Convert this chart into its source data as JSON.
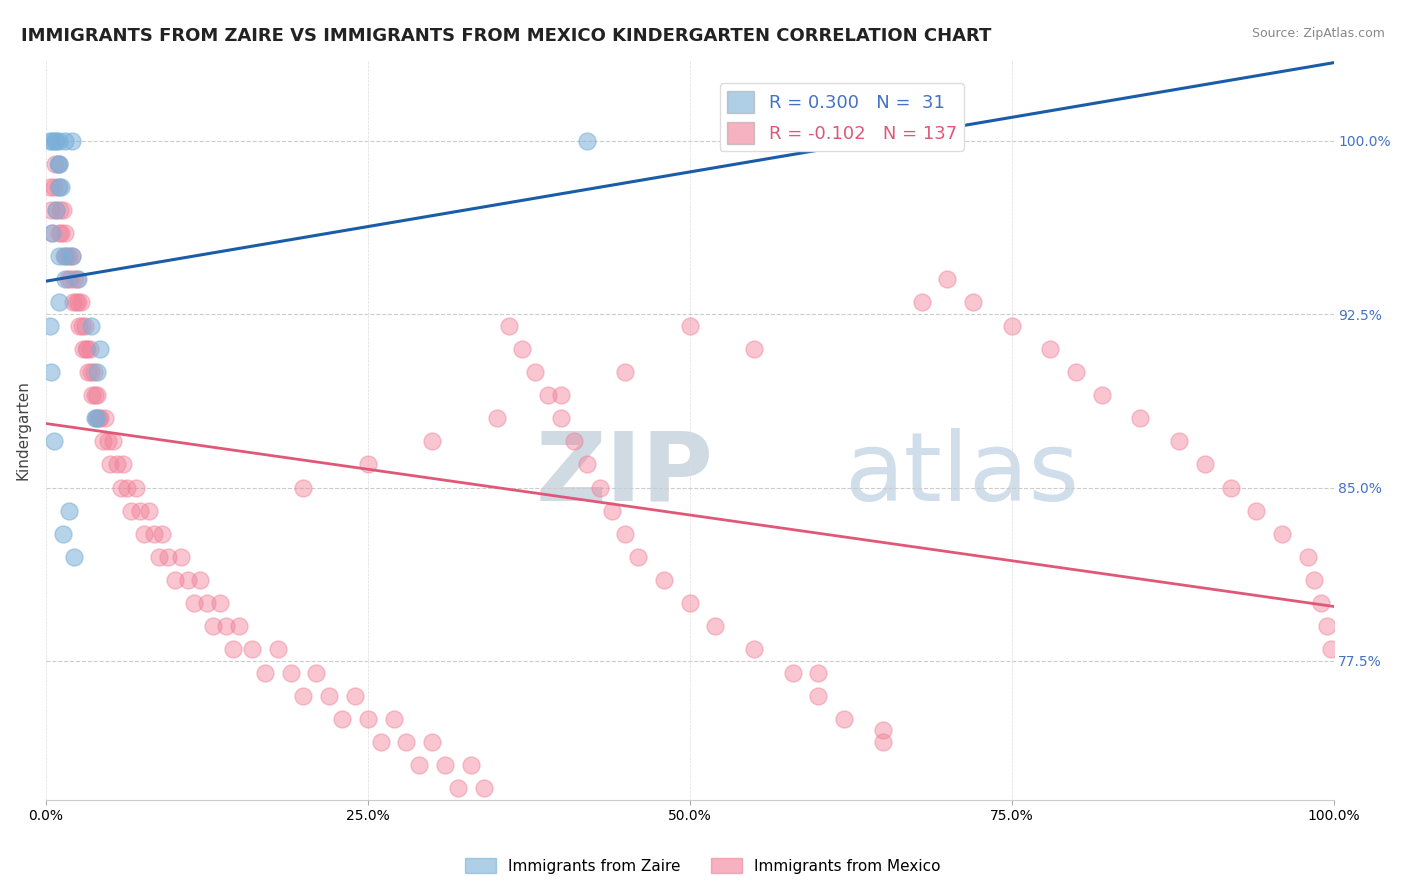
{
  "title": "IMMIGRANTS FROM ZAIRE VS IMMIGRANTS FROM MEXICO KINDERGARTEN CORRELATION CHART",
  "source": "Source: ZipAtlas.com",
  "ylabel": "Kindergarten",
  "ytick_values": [
    0.775,
    0.85,
    0.925,
    1.0
  ],
  "xlim": [
    0.0,
    1.0
  ],
  "ylim": [
    0.715,
    1.035
  ],
  "zaire_color": "#7ab0d8",
  "mexico_color": "#f08098",
  "zaire_line_color": "#1a5ca8",
  "mexico_line_color": "#e05878",
  "watermark_color": "#ccdde8",
  "background_color": "#ffffff",
  "title_fontsize": 13,
  "axis_label_fontsize": 11,
  "tick_fontsize": 10,
  "zaire_R": 0.3,
  "zaire_N": 31,
  "mexico_R": -0.102,
  "mexico_N": 137,
  "zaire_x": [
    0.003,
    0.005,
    0.005,
    0.007,
    0.008,
    0.008,
    0.009,
    0.01,
    0.01,
    0.01,
    0.01,
    0.01,
    0.012,
    0.013,
    0.015,
    0.015,
    0.015,
    0.018,
    0.02,
    0.02,
    0.022,
    0.025,
    0.035,
    0.038,
    0.04,
    0.04,
    0.042,
    0.003,
    0.004,
    0.006,
    0.42
  ],
  "zaire_y": [
    1.0,
    1.0,
    0.96,
    1.0,
    1.0,
    0.97,
    0.99,
    1.0,
    0.99,
    0.98,
    0.95,
    0.93,
    0.98,
    0.83,
    1.0,
    0.95,
    0.94,
    0.84,
    1.0,
    0.95,
    0.82,
    0.94,
    0.92,
    0.88,
    0.9,
    0.88,
    0.91,
    0.92,
    0.9,
    0.87,
    1.0
  ],
  "mexico_x": [
    0.003,
    0.004,
    0.005,
    0.006,
    0.007,
    0.008,
    0.009,
    0.01,
    0.01,
    0.011,
    0.012,
    0.013,
    0.014,
    0.015,
    0.016,
    0.017,
    0.018,
    0.019,
    0.02,
    0.021,
    0.022,
    0.023,
    0.024,
    0.025,
    0.026,
    0.027,
    0.028,
    0.029,
    0.03,
    0.031,
    0.032,
    0.033,
    0.034,
    0.035,
    0.036,
    0.037,
    0.038,
    0.039,
    0.04,
    0.041,
    0.042,
    0.044,
    0.046,
    0.048,
    0.05,
    0.052,
    0.055,
    0.058,
    0.06,
    0.063,
    0.066,
    0.07,
    0.073,
    0.076,
    0.08,
    0.084,
    0.088,
    0.09,
    0.095,
    0.1,
    0.105,
    0.11,
    0.115,
    0.12,
    0.125,
    0.13,
    0.135,
    0.14,
    0.145,
    0.15,
    0.16,
    0.17,
    0.18,
    0.19,
    0.2,
    0.21,
    0.22,
    0.23,
    0.24,
    0.25,
    0.26,
    0.27,
    0.28,
    0.29,
    0.3,
    0.31,
    0.32,
    0.33,
    0.34,
    0.35,
    0.36,
    0.37,
    0.38,
    0.39,
    0.4,
    0.41,
    0.42,
    0.43,
    0.44,
    0.45,
    0.46,
    0.48,
    0.5,
    0.52,
    0.55,
    0.58,
    0.6,
    0.62,
    0.65,
    0.68,
    0.7,
    0.72,
    0.75,
    0.78,
    0.8,
    0.82,
    0.85,
    0.88,
    0.9,
    0.92,
    0.94,
    0.96,
    0.98,
    0.985,
    0.99,
    0.995,
    0.998,
    0.6,
    0.65,
    0.5,
    0.55,
    0.45,
    0.4,
    0.35,
    0.3,
    0.25,
    0.2
  ],
  "mexico_y": [
    0.98,
    0.97,
    0.96,
    0.98,
    0.99,
    0.97,
    0.98,
    0.99,
    0.96,
    0.97,
    0.96,
    0.97,
    0.95,
    0.96,
    0.95,
    0.94,
    0.95,
    0.94,
    0.95,
    0.93,
    0.94,
    0.93,
    0.94,
    0.93,
    0.92,
    0.93,
    0.92,
    0.91,
    0.92,
    0.91,
    0.91,
    0.9,
    0.91,
    0.9,
    0.89,
    0.9,
    0.89,
    0.88,
    0.89,
    0.88,
    0.88,
    0.87,
    0.88,
    0.87,
    0.86,
    0.87,
    0.86,
    0.85,
    0.86,
    0.85,
    0.84,
    0.85,
    0.84,
    0.83,
    0.84,
    0.83,
    0.82,
    0.83,
    0.82,
    0.81,
    0.82,
    0.81,
    0.8,
    0.81,
    0.8,
    0.79,
    0.8,
    0.79,
    0.78,
    0.79,
    0.78,
    0.77,
    0.78,
    0.77,
    0.76,
    0.77,
    0.76,
    0.75,
    0.76,
    0.75,
    0.74,
    0.75,
    0.74,
    0.73,
    0.74,
    0.73,
    0.72,
    0.73,
    0.72,
    0.71,
    0.92,
    0.91,
    0.9,
    0.89,
    0.88,
    0.87,
    0.86,
    0.85,
    0.84,
    0.83,
    0.82,
    0.81,
    0.8,
    0.79,
    0.78,
    0.77,
    0.76,
    0.75,
    0.74,
    0.93,
    0.94,
    0.93,
    0.92,
    0.91,
    0.9,
    0.89,
    0.88,
    0.87,
    0.86,
    0.85,
    0.84,
    0.83,
    0.82,
    0.81,
    0.8,
    0.79,
    0.78,
    0.77,
    0.745,
    0.92,
    0.91,
    0.9,
    0.89,
    0.88,
    0.87,
    0.86,
    0.85
  ]
}
